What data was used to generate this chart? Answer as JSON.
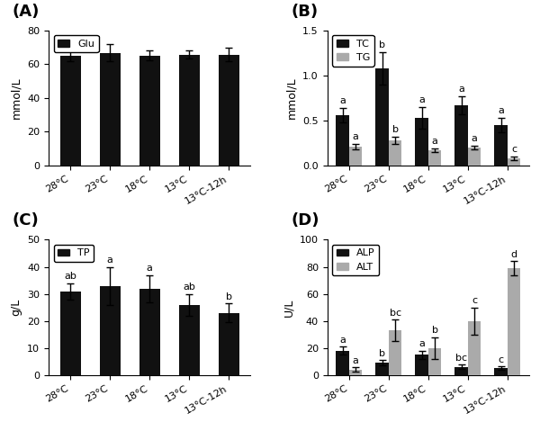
{
  "categories": [
    "28°C",
    "23°C",
    "18°C",
    "13°C",
    "13°C-12h"
  ],
  "A": {
    "label": "Glu",
    "ylabel": "mmol/L",
    "ylim": [
      0,
      80
    ],
    "yticks": [
      0,
      20,
      40,
      60,
      80
    ],
    "values": [
      65.0,
      66.5,
      65.0,
      65.5,
      65.5
    ],
    "errors": [
      3.5,
      5.0,
      3.0,
      2.5,
      4.0
    ],
    "sig_labels": [
      "",
      "",
      "",
      "",
      ""
    ]
  },
  "B": {
    "labels": [
      "TC",
      "TG"
    ],
    "ylabel": "mmol/L",
    "ylim": [
      0,
      1.5
    ],
    "yticks": [
      0.0,
      0.5,
      1.0,
      1.5
    ],
    "TC_values": [
      0.56,
      1.08,
      0.53,
      0.67,
      0.45
    ],
    "TC_errors": [
      0.08,
      0.18,
      0.12,
      0.1,
      0.08
    ],
    "TC_sig": [
      "a",
      "b",
      "a",
      "a",
      "a"
    ],
    "TG_values": [
      0.21,
      0.28,
      0.17,
      0.2,
      0.08
    ],
    "TG_errors": [
      0.03,
      0.04,
      0.02,
      0.02,
      0.02
    ],
    "TG_sig": [
      "a",
      "b",
      "a",
      "a",
      "c"
    ]
  },
  "C": {
    "label": "TP",
    "ylabel": "g/L",
    "ylim": [
      0,
      50
    ],
    "yticks": [
      0,
      10,
      20,
      30,
      40,
      50
    ],
    "values": [
      31.0,
      33.0,
      32.0,
      26.0,
      23.0
    ],
    "errors": [
      3.0,
      7.0,
      5.0,
      4.0,
      3.5
    ],
    "sig_labels": [
      "ab",
      "a",
      "a",
      "ab",
      "b"
    ]
  },
  "D": {
    "labels": [
      "ALP",
      "ALT"
    ],
    "ylabel": "U/L",
    "ylim": [
      0,
      100
    ],
    "yticks": [
      0,
      20,
      40,
      60,
      80,
      100
    ],
    "ALP_values": [
      18.0,
      9.0,
      15.0,
      6.0,
      5.0
    ],
    "ALP_errors": [
      3.0,
      2.0,
      3.0,
      1.5,
      1.5
    ],
    "ALP_sig": [
      "a",
      "b",
      "a",
      "bc",
      "c"
    ],
    "ALT_values": [
      4.0,
      33.0,
      20.0,
      40.0,
      79.0
    ],
    "ALT_errors": [
      1.5,
      8.0,
      8.0,
      10.0,
      5.0
    ],
    "ALT_sig": [
      "a",
      "bc",
      "b",
      "c",
      "d"
    ]
  },
  "bar_color_black": "#111111",
  "bar_color_gray": "#aaaaaa",
  "background_color": "#ffffff",
  "sig_fontsize": 8,
  "label_fontsize": 9,
  "tick_fontsize": 8,
  "panel_label_fontsize": 13
}
